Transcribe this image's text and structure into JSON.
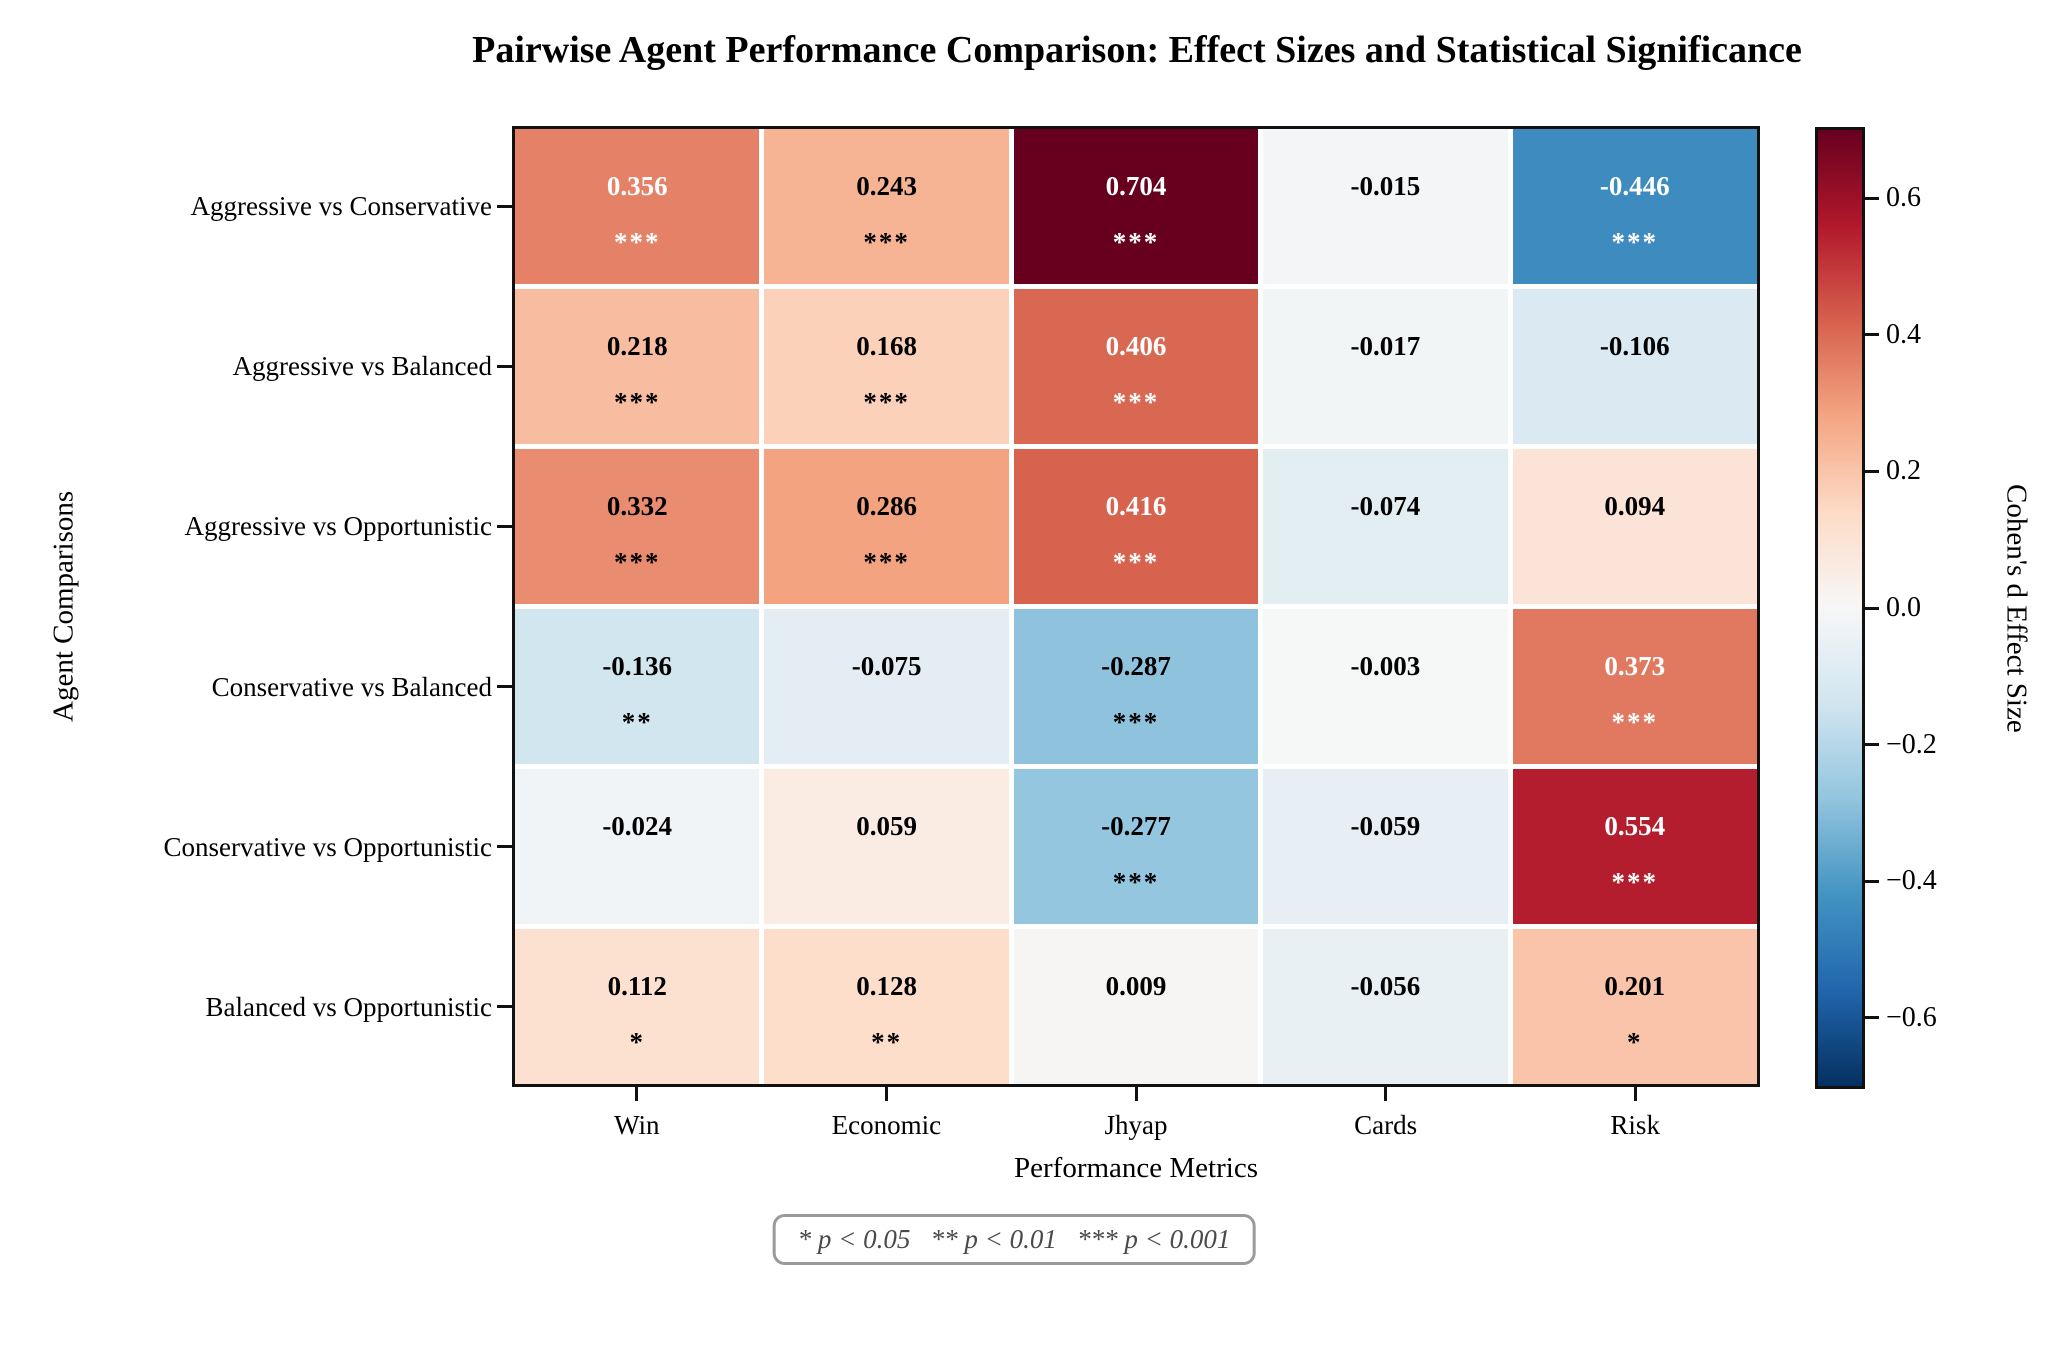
{
  "title": "Pairwise Agent Performance Comparison: Effect Sizes and Statistical Significance",
  "chart_data": {
    "type": "heatmap",
    "title": "Pairwise Agent Performance Comparison: Effect Sizes and Statistical Significance",
    "xlabel": "Performance Metrics",
    "ylabel": "Agent Comparisons",
    "columns": [
      "Win",
      "Economic",
      "Jhyap",
      "Cards",
      "Risk"
    ],
    "rows": [
      "Aggressive vs Conservative",
      "Aggressive vs Balanced",
      "Aggressive vs Opportunistic",
      "Conservative vs Balanced",
      "Conservative vs Opportunistic",
      "Balanced vs Opportunistic"
    ],
    "values": [
      [
        0.356,
        0.243,
        0.704,
        -0.015,
        -0.446
      ],
      [
        0.218,
        0.168,
        0.406,
        -0.017,
        -0.106
      ],
      [
        0.332,
        0.286,
        0.416,
        -0.074,
        0.094
      ],
      [
        -0.136,
        -0.075,
        -0.287,
        -0.003,
        0.373
      ],
      [
        -0.024,
        0.059,
        -0.277,
        -0.059,
        0.554
      ],
      [
        0.112,
        0.128,
        0.009,
        -0.056,
        0.201
      ]
    ],
    "significance": [
      [
        "***",
        "***",
        "***",
        "",
        "***"
      ],
      [
        "***",
        "***",
        "***",
        "",
        ""
      ],
      [
        "***",
        "***",
        "***",
        "",
        ""
      ],
      [
        "**",
        "",
        "***",
        "",
        "***"
      ],
      [
        "",
        "",
        "***",
        "",
        "***"
      ],
      [
        "*",
        "**",
        "",
        "",
        "*"
      ]
    ],
    "value_decimals": 3,
    "grid": false,
    "cell_gap_color": "#ffffff",
    "text_color_threshold": 0.35,
    "cell_text_colors": {
      "dark": "#000000",
      "light": "#ffffff"
    },
    "colorbar": {
      "label": "Cohen's d Effect Size",
      "ticks": [
        0.6,
        0.4,
        0.2,
        0.0,
        -0.2,
        -0.4,
        -0.6
      ],
      "vmin": -0.704,
      "vmax": 0.704,
      "position": "right"
    },
    "colormap": {
      "name": "RdBu_r",
      "stops_top_to_bottom": [
        "#67001F",
        "#B2182B",
        "#D6604D",
        "#F4A582",
        "#FDDBC7",
        "#F7F7F7",
        "#D1E5F0",
        "#92C5DE",
        "#4393C3",
        "#2166AC",
        "#053061"
      ]
    },
    "significance_note": "* p < 0.05   ** p < 0.01   *** p < 0.001"
  }
}
